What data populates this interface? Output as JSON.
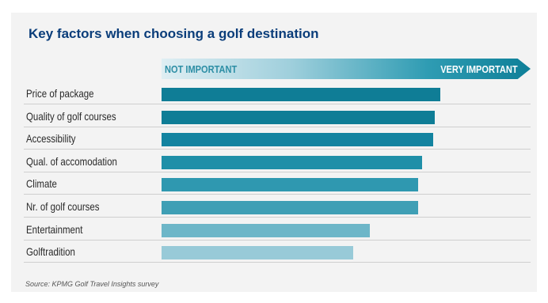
{
  "chart_data": {
    "type": "bar",
    "orientation": "horizontal",
    "title": "Key factors when choosing a golf destination",
    "scale": {
      "low_label": "NOT IMPORTANT",
      "high_label": "VERY IMPORTANT"
    },
    "xlim": [
      0,
      1
    ],
    "categories": [
      "Price of package",
      "Quality of golf courses",
      "Accessibility",
      "Qual. of accomodation",
      "Climate",
      "Nr. of golf courses",
      "Entertainment",
      "Golftradition"
    ],
    "values": [
      0.755,
      0.74,
      0.735,
      0.705,
      0.695,
      0.695,
      0.565,
      0.52
    ],
    "bar_colors": [
      "#0f7d96",
      "#0f7d96",
      "#1383a0",
      "#1f8fa8",
      "#2f98b0",
      "#3f9fb5",
      "#6db6c8",
      "#98cad8"
    ],
    "source": "Source: KPMG Golf Travel Insights survey"
  }
}
